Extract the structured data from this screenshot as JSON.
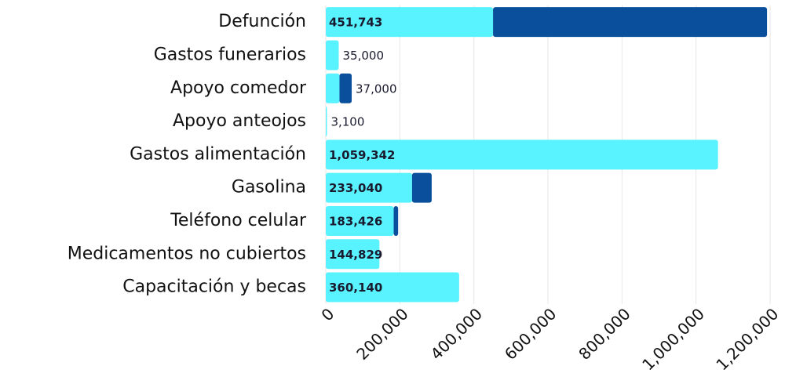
{
  "chart_data": {
    "type": "bar",
    "orientation": "horizontal",
    "stacked": true,
    "categories": [
      "Defunción",
      "Gastos funerarios",
      "Apoyo comedor",
      "Apoyo anteojos",
      "Gastos alimentación",
      "Gasolina",
      "Teléfono celular",
      "Medicamentos no cubiertos",
      "Capacitación y becas"
    ],
    "series": [
      {
        "color": "#58f3ff",
        "values": [
          451743,
          35000,
          37000,
          3100,
          1059342,
          233040,
          183426,
          144829,
          360140
        ],
        "value_labels": [
          "451,743",
          "35,000",
          "37,000",
          "3,100",
          "1,059,342",
          "233,040",
          "183,426",
          "144,829",
          "360,140"
        ]
      },
      {
        "color": "#0a4f9b",
        "values": [
          740000,
          null,
          33000,
          null,
          null,
          53000,
          12000,
          null,
          null
        ]
      }
    ],
    "xlim": [
      0,
      1200000
    ],
    "xticks": [
      0,
      {
        "value": 200000,
        "label": "200,000"
      },
      {
        "value": 400000,
        "label": "400,000"
      },
      {
        "value": 600000,
        "label": "600,000"
      },
      {
        "value": 800000,
        "label": "800,000"
      },
      {
        "value": 1000000,
        "label": "1,000,000"
      },
      {
        "value": 1200000,
        "label": "1,200,000"
      }
    ],
    "grid": true
  }
}
